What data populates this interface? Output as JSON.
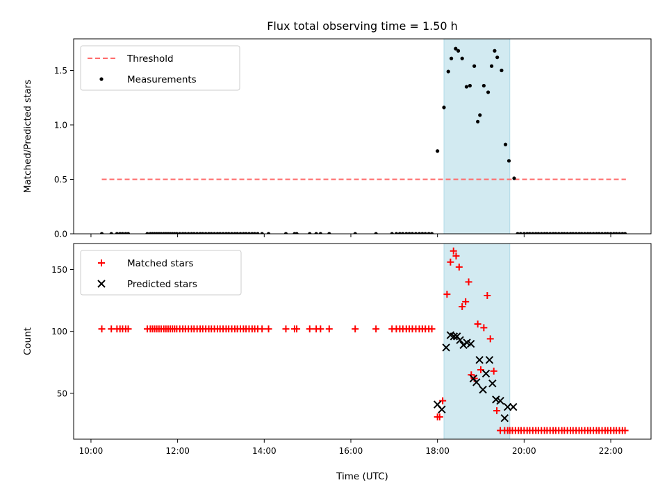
{
  "chart_data": [
    {
      "type": "scatter",
      "title": "Flux total observing time = 1.50 h",
      "xlabel": "",
      "ylabel": "Matched/Predicted stars",
      "xlim": [
        9.6,
        22.93
      ],
      "ylim": [
        0.0,
        1.79
      ],
      "x_ticks": [
        10,
        12,
        14,
        16,
        18,
        20,
        22
      ],
      "y_ticks": [
        0.0,
        0.5,
        1.0,
        1.5
      ],
      "y_tick_labels": [
        "0.0",
        "0.5",
        "1.0",
        "1.5"
      ],
      "shaded_region": {
        "x": [
          18.15,
          19.67
        ],
        "color": "#add8e6"
      },
      "legend_position": "upper left",
      "colors": {
        "threshold": "#ff6b6b",
        "measurements": "#000000",
        "shade": "#add8e6"
      },
      "series": [
        {
          "name": "Threshold",
          "style": "dashed-line",
          "x": [
            10.25,
            22.35
          ],
          "y": [
            0.5,
            0.5
          ]
        },
        {
          "name": "Measurements",
          "style": "dot",
          "x": [
            10.25,
            10.47,
            10.6,
            10.67,
            10.73,
            10.8,
            10.86,
            11.3,
            11.37,
            11.42,
            11.47,
            11.52,
            11.57,
            11.62,
            11.68,
            11.73,
            11.78,
            11.83,
            11.88,
            11.93,
            11.98,
            12.05,
            12.12,
            12.18,
            12.25,
            12.32,
            12.38,
            12.45,
            12.52,
            12.58,
            12.65,
            12.72,
            12.78,
            12.85,
            12.92,
            12.98,
            13.05,
            13.12,
            13.18,
            13.25,
            13.32,
            13.38,
            13.45,
            13.52,
            13.58,
            13.65,
            13.72,
            13.78,
            13.85,
            13.95,
            14.1,
            14.5,
            14.7,
            14.75,
            15.05,
            15.2,
            15.3,
            15.5,
            16.1,
            16.58,
            16.95,
            17.05,
            17.13,
            17.2,
            17.28,
            17.35,
            17.42,
            17.5,
            17.58,
            17.65,
            17.72,
            17.8,
            17.87,
            18.0,
            18.15,
            18.25,
            18.32,
            18.42,
            18.48,
            18.57,
            18.67,
            18.75,
            18.85,
            18.93,
            18.98,
            19.07,
            19.17,
            19.25,
            19.32,
            19.38,
            19.48,
            19.57,
            19.65,
            19.77,
            19.85,
            19.92,
            20.0,
            20.07,
            20.13,
            20.2,
            20.27,
            20.33,
            20.4,
            20.47,
            20.53,
            20.6,
            20.67,
            20.73,
            20.8,
            20.87,
            20.93,
            21.0,
            21.07,
            21.13,
            21.2,
            21.27,
            21.33,
            21.4,
            21.47,
            21.53,
            21.6,
            21.67,
            21.73,
            21.8,
            21.87,
            21.93,
            22.0,
            22.07,
            22.13,
            22.2,
            22.27,
            22.33
          ],
          "y": [
            0,
            0,
            0,
            0,
            0,
            0,
            0,
            0,
            0,
            0,
            0,
            0,
            0,
            0,
            0,
            0,
            0,
            0,
            0,
            0,
            0,
            0,
            0,
            0,
            0,
            0,
            0,
            0,
            0,
            0,
            0,
            0,
            0,
            0,
            0,
            0,
            0,
            0,
            0,
            0,
            0,
            0,
            0,
            0,
            0,
            0,
            0,
            0,
            0,
            0,
            0,
            0,
            0,
            0,
            0,
            0,
            0,
            0,
            0,
            0,
            0,
            0,
            0,
            0,
            0,
            0,
            0,
            0,
            0,
            0,
            0,
            0,
            0,
            0.76,
            1.16,
            1.49,
            1.61,
            1.7,
            1.68,
            1.61,
            1.35,
            1.36,
            1.54,
            1.03,
            1.09,
            1.36,
            1.3,
            1.54,
            1.68,
            1.62,
            1.5,
            0.82,
            0.67,
            0.51,
            0,
            0,
            0,
            0,
            0,
            0,
            0,
            0,
            0,
            0,
            0,
            0,
            0,
            0,
            0,
            0,
            0,
            0,
            0,
            0,
            0,
            0,
            0,
            0,
            0,
            0,
            0,
            0,
            0,
            0,
            0,
            0,
            0,
            0,
            0,
            0,
            0,
            0
          ]
        }
      ]
    },
    {
      "type": "scatter",
      "title": "",
      "xlabel": "Time (UTC)",
      "ylabel": "Count",
      "xlim": [
        9.6,
        22.93
      ],
      "ylim": [
        13,
        171
      ],
      "x_ticks": [
        10,
        12,
        14,
        16,
        18,
        20,
        22
      ],
      "x_tick_labels": [
        "10:00",
        "12:00",
        "14:00",
        "16:00",
        "18:00",
        "20:00",
        "22:00"
      ],
      "y_ticks": [
        50,
        100,
        150
      ],
      "y_tick_labels": [
        "50",
        "100",
        "150"
      ],
      "shaded_region": {
        "x": [
          18.15,
          19.67
        ],
        "color": "#add8e6"
      },
      "legend_position": "upper left",
      "colors": {
        "matched": "#ff0000",
        "predicted": "#000000",
        "shade": "#add8e6"
      },
      "series": [
        {
          "name": "Matched stars",
          "style": "plus",
          "x": [
            10.25,
            10.47,
            10.6,
            10.67,
            10.73,
            10.8,
            10.86,
            11.3,
            11.37,
            11.42,
            11.47,
            11.52,
            11.57,
            11.62,
            11.68,
            11.73,
            11.78,
            11.83,
            11.88,
            11.93,
            11.98,
            12.05,
            12.12,
            12.18,
            12.25,
            12.32,
            12.38,
            12.45,
            12.52,
            12.58,
            12.65,
            12.72,
            12.78,
            12.85,
            12.92,
            12.98,
            13.05,
            13.12,
            13.18,
            13.25,
            13.32,
            13.38,
            13.45,
            13.52,
            13.58,
            13.65,
            13.72,
            13.78,
            13.85,
            13.95,
            14.1,
            14.5,
            14.7,
            14.75,
            15.05,
            15.2,
            15.3,
            15.5,
            16.1,
            16.58,
            16.95,
            17.05,
            17.13,
            17.2,
            17.28,
            17.35,
            17.42,
            17.5,
            17.58,
            17.65,
            17.72,
            17.8,
            17.87,
            18.0,
            18.05,
            18.12,
            18.22,
            18.3,
            18.37,
            18.43,
            18.5,
            18.57,
            18.65,
            18.72,
            18.78,
            18.85,
            18.93,
            19.0,
            19.07,
            19.15,
            19.22,
            19.3,
            19.37,
            19.45,
            19.55,
            19.62,
            19.67,
            19.73,
            19.8,
            19.87,
            19.93,
            20.0,
            20.07,
            20.13,
            20.2,
            20.27,
            20.33,
            20.4,
            20.47,
            20.53,
            20.6,
            20.67,
            20.73,
            20.8,
            20.87,
            20.93,
            21.0,
            21.07,
            21.13,
            21.2,
            21.27,
            21.33,
            21.4,
            21.47,
            21.53,
            21.6,
            21.67,
            21.73,
            21.8,
            21.87,
            21.93,
            22.0,
            22.07,
            22.13,
            22.2,
            22.27,
            22.33
          ],
          "y": [
            102,
            102,
            102,
            102,
            102,
            102,
            102,
            102,
            102,
            102,
            102,
            102,
            102,
            102,
            102,
            102,
            102,
            102,
            102,
            102,
            102,
            102,
            102,
            102,
            102,
            102,
            102,
            102,
            102,
            102,
            102,
            102,
            102,
            102,
            102,
            102,
            102,
            102,
            102,
            102,
            102,
            102,
            102,
            102,
            102,
            102,
            102,
            102,
            102,
            102,
            102,
            102,
            102,
            102,
            102,
            102,
            102,
            102,
            102,
            102,
            102,
            102,
            102,
            102,
            102,
            102,
            102,
            102,
            102,
            102,
            102,
            102,
            102,
            31,
            31,
            44,
            130,
            156,
            165,
            161,
            152,
            120,
            124,
            140,
            65,
            62,
            106,
            69,
            103,
            129,
            94,
            68,
            36,
            20,
            20,
            20,
            20,
            20,
            20,
            20,
            20,
            20,
            20,
            20,
            20,
            20,
            20,
            20,
            20,
            20,
            20,
            20,
            20,
            20,
            20,
            20,
            20,
            20,
            20,
            20,
            20,
            20,
            20,
            20,
            20,
            20,
            20,
            20,
            20,
            20,
            20,
            20,
            20,
            20,
            20,
            20,
            20
          ]
        },
        {
          "name": "Predicted stars",
          "style": "x",
          "x": [
            18.0,
            18.1,
            18.2,
            18.3,
            18.38,
            18.45,
            18.52,
            18.6,
            18.68,
            18.77,
            18.83,
            18.9,
            18.97,
            19.05,
            19.12,
            19.2,
            19.27,
            19.35,
            19.45,
            19.55,
            19.62,
            19.75
          ],
          "y": [
            41,
            37,
            87,
            97,
            96,
            96,
            93,
            89,
            91,
            90,
            62,
            59,
            77,
            53,
            66,
            77,
            58,
            45,
            44,
            30,
            39,
            39
          ]
        }
      ]
    }
  ]
}
